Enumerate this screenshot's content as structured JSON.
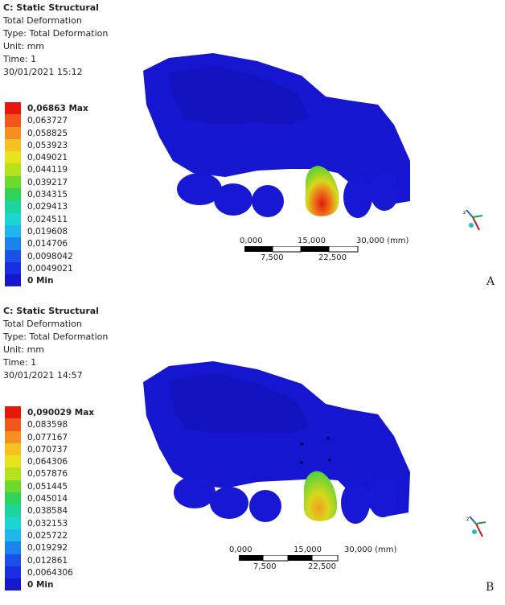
{
  "panels": [
    {
      "header": {
        "title": "C: Static Structural",
        "result": "Total Deformation",
        "type": "Type: Total Deformation",
        "unit": "Unit: mm",
        "time": "Time: 1",
        "date": "30/01/2021 15:12"
      },
      "legend": [
        {
          "label": "0,06863 Max",
          "color": "#e8170e",
          "bold": true
        },
        {
          "label": "0,063727",
          "color": "#f1561a"
        },
        {
          "label": "0,058825",
          "color": "#f58f22"
        },
        {
          "label": "0,053923",
          "color": "#f5c21f"
        },
        {
          "label": "0,049021",
          "color": "#e8e31c"
        },
        {
          "label": "0,044119",
          "color": "#b4e31e"
        },
        {
          "label": "0,039217",
          "color": "#6dd92a"
        },
        {
          "label": "0,034315",
          "color": "#30d35a"
        },
        {
          "label": "0,029413",
          "color": "#1cd49d"
        },
        {
          "label": "0,024511",
          "color": "#1cd6d3"
        },
        {
          "label": "0,019608",
          "color": "#1fb8ec"
        },
        {
          "label": "0,014706",
          "color": "#1d82ec"
        },
        {
          "label": "0,0098042",
          "color": "#1b50e8"
        },
        {
          "label": "0,0049021",
          "color": "#1a2ee0"
        },
        {
          "label": "0 Min",
          "color": "#1717cf",
          "bold": true
        }
      ],
      "scale": {
        "top": [
          "0,000",
          "15,000",
          "30,000 (mm)"
        ],
        "bottom": [
          "7,500",
          "22,500"
        ]
      },
      "letter": "A"
    },
    {
      "header": {
        "title": "C: Static Structural",
        "result": "Total Deformation",
        "type": "Type: Total Deformation",
        "unit": "Unit: mm",
        "time": "Time: 1",
        "date": "30/01/2021 14:57"
      },
      "legend": [
        {
          "label": "0,090029 Max",
          "color": "#e8170e",
          "bold": true
        },
        {
          "label": "0,083598",
          "color": "#f1561a"
        },
        {
          "label": "0,077167",
          "color": "#f58f22"
        },
        {
          "label": "0,070737",
          "color": "#f5c21f"
        },
        {
          "label": "0,064306",
          "color": "#e8e31c"
        },
        {
          "label": "0,057876",
          "color": "#b4e31e"
        },
        {
          "label": "0,051445",
          "color": "#6dd92a"
        },
        {
          "label": "0,045014",
          "color": "#30d35a"
        },
        {
          "label": "0,038584",
          "color": "#1cd49d"
        },
        {
          "label": "0,032153",
          "color": "#1cd6d3"
        },
        {
          "label": "0,025722",
          "color": "#1fb8ec"
        },
        {
          "label": "0,019292",
          "color": "#1d82ec"
        },
        {
          "label": "0,012861",
          "color": "#1b50e8"
        },
        {
          "label": "0,0064306",
          "color": "#1a2ee0"
        },
        {
          "label": "0 Min",
          "color": "#1717cf",
          "bold": true
        }
      ],
      "scale": {
        "top": [
          "0,000",
          "15,000",
          "30,000 (mm)"
        ],
        "bottom": [
          "7,500",
          "22,500"
        ]
      },
      "letter": "B"
    }
  ],
  "colors": {
    "model_blue": "#1414d2",
    "triad_z": "#2060c0",
    "triad_x": "#c02020",
    "triad_y": "#20a040"
  }
}
